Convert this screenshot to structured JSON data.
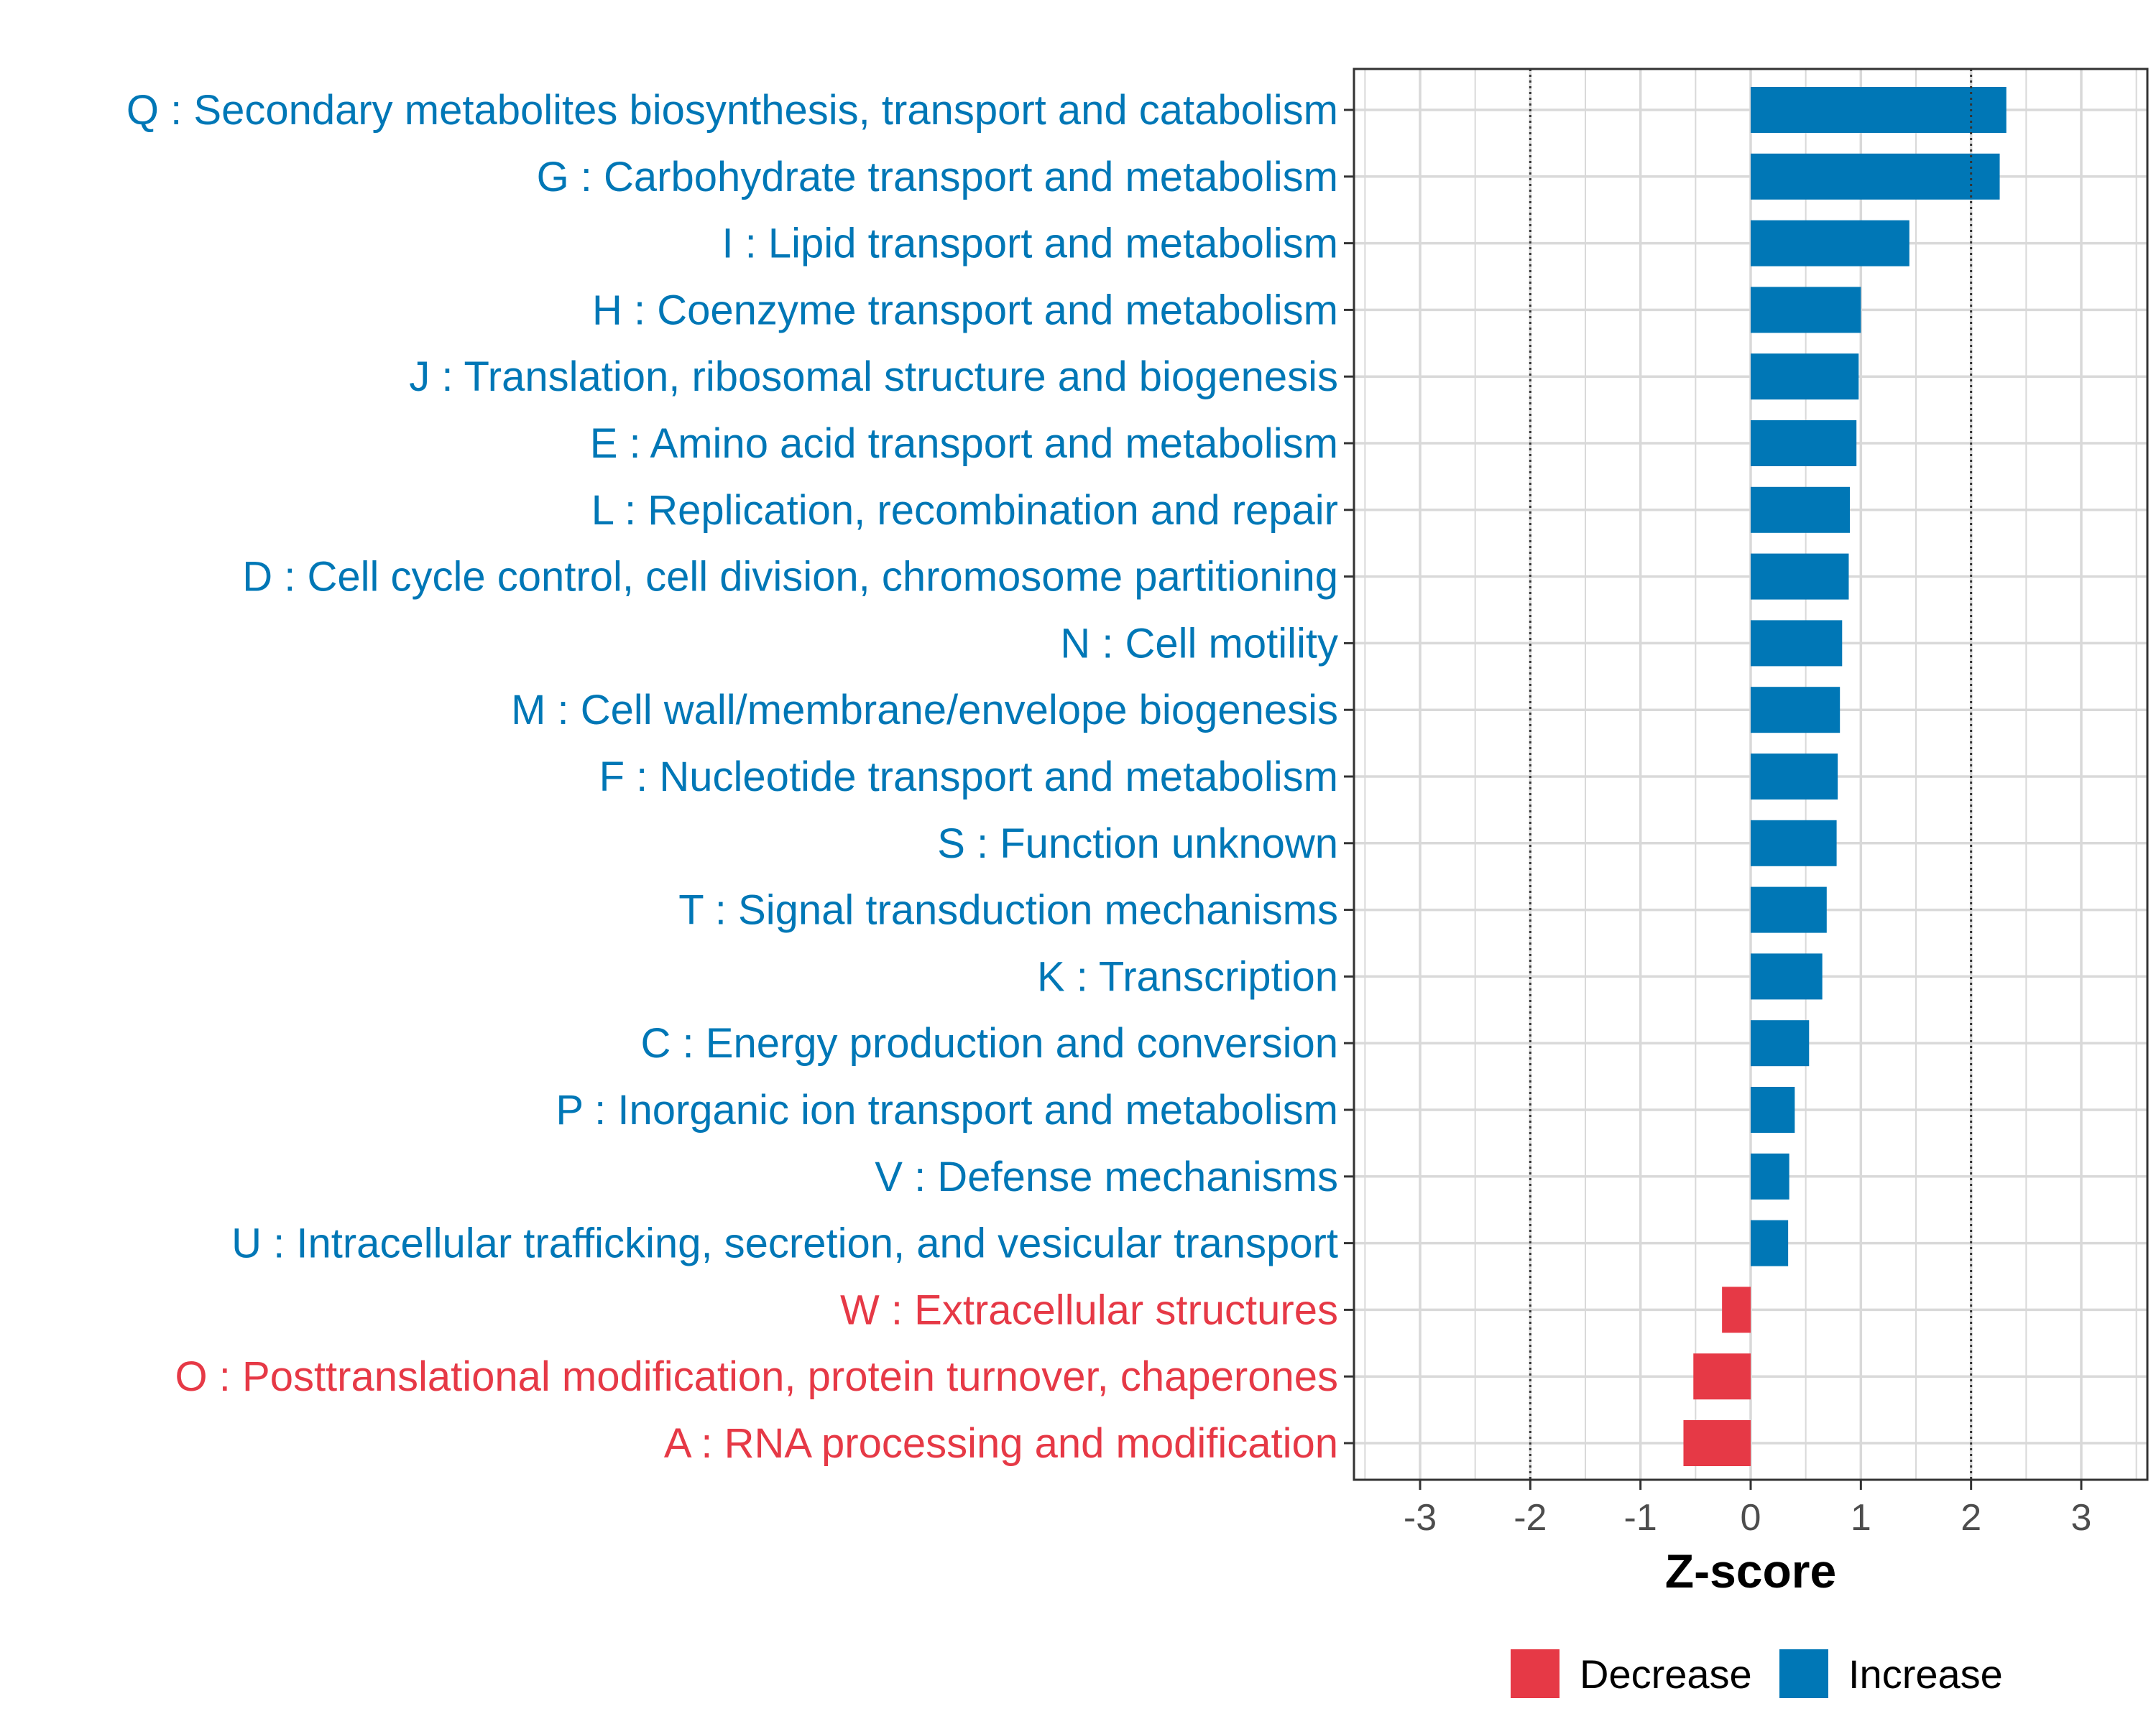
{
  "chart_data": {
    "type": "bar",
    "orientation": "horizontal",
    "xlabel": "Z-score",
    "xlim": [
      -3.6,
      3.6
    ],
    "xticks": [
      -3,
      -2,
      -1,
      0,
      1,
      2,
      3
    ],
    "xtick_labels": [
      "-3",
      "-2",
      "-1",
      "0",
      "1",
      "2",
      "3"
    ],
    "threshold_lines": [
      -2,
      2
    ],
    "grid": true,
    "colors": {
      "Decrease": "#e63946",
      "Increase": "#0077b6"
    },
    "legend": {
      "position": "bottom",
      "entries": [
        {
          "label": "Decrease",
          "color": "#e63946"
        },
        {
          "label": "Increase",
          "color": "#0077b6"
        }
      ]
    },
    "categories": [
      {
        "label": "Q : Secondary metabolites biosynthesis, transport and catabolism",
        "value": 2.32,
        "direction": "Increase"
      },
      {
        "label": "G : Carbohydrate transport and metabolism",
        "value": 2.26,
        "direction": "Increase"
      },
      {
        "label": "I : Lipid transport and metabolism",
        "value": 1.44,
        "direction": "Increase"
      },
      {
        "label": "H : Coenzyme transport and metabolism",
        "value": 1.0,
        "direction": "Increase"
      },
      {
        "label": "J : Translation, ribosomal structure and biogenesis",
        "value": 0.98,
        "direction": "Increase"
      },
      {
        "label": "E : Amino acid transport and metabolism",
        "value": 0.96,
        "direction": "Increase"
      },
      {
        "label": "L : Replication, recombination and repair",
        "value": 0.9,
        "direction": "Increase"
      },
      {
        "label": "D : Cell cycle control, cell division, chromosome partitioning",
        "value": 0.89,
        "direction": "Increase"
      },
      {
        "label": "N : Cell motility",
        "value": 0.83,
        "direction": "Increase"
      },
      {
        "label": "M : Cell wall/membrane/envelope biogenesis",
        "value": 0.81,
        "direction": "Increase"
      },
      {
        "label": "F : Nucleotide transport and metabolism",
        "value": 0.79,
        "direction": "Increase"
      },
      {
        "label": "S : Function unknown",
        "value": 0.78,
        "direction": "Increase"
      },
      {
        "label": "T : Signal transduction mechanisms",
        "value": 0.69,
        "direction": "Increase"
      },
      {
        "label": "K : Transcription",
        "value": 0.65,
        "direction": "Increase"
      },
      {
        "label": "C : Energy production and conversion",
        "value": 0.53,
        "direction": "Increase"
      },
      {
        "label": "P : Inorganic ion transport and metabolism",
        "value": 0.4,
        "direction": "Increase"
      },
      {
        "label": "V : Defense mechanisms",
        "value": 0.35,
        "direction": "Increase"
      },
      {
        "label": "U : Intracellular trafficking, secretion, and vesicular transport",
        "value": 0.34,
        "direction": "Increase"
      },
      {
        "label": "W : Extracellular structures",
        "value": -0.26,
        "direction": "Decrease"
      },
      {
        "label": "O : Posttranslational modification, protein turnover, chaperones",
        "value": -0.52,
        "direction": "Decrease"
      },
      {
        "label": "A : RNA processing and modification",
        "value": -0.61,
        "direction": "Decrease"
      }
    ]
  }
}
